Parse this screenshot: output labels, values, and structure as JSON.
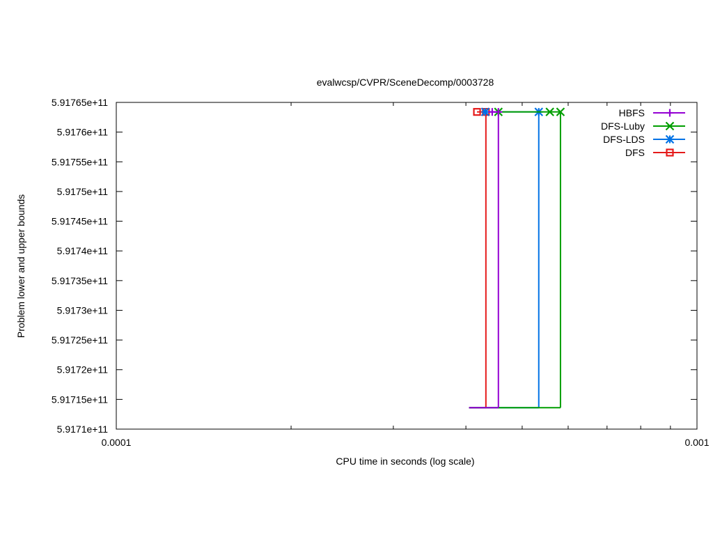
{
  "chart_data": {
    "type": "line",
    "title": "evalwcsp/CVPR/SceneDecomp/0003728",
    "xlabel": "CPU time in seconds (log scale)",
    "ylabel": "Problem lower and upper bounds",
    "x_scale": "log",
    "xlim": [
      0.0001,
      0.001
    ],
    "ylim": [
      591710000000,
      591765000000
    ],
    "x_tick_labels": [
      "0.0001",
      "0.001"
    ],
    "y_tick_labels": [
      "5.9171e+11",
      "5.91715e+11",
      "5.9172e+11",
      "5.91725e+11",
      "5.9173e+11",
      "5.91735e+11",
      "5.9174e+11",
      "5.91745e+11",
      "5.9175e+11",
      "5.91755e+11",
      "5.9176e+11",
      "5.91765e+11"
    ],
    "grid": false,
    "legend_position": "top-right",
    "series": [
      {
        "name": "HBFS",
        "color": "#9400d3",
        "marker": "plus",
        "upper": [
          [
            0.000444,
            591763400000
          ],
          [
            0.000455,
            591763400000
          ]
        ],
        "lower": [
          [
            0.000405,
            591713600000
          ],
          [
            0.000455,
            591713600000
          ]
        ]
      },
      {
        "name": "DFS-Luby",
        "color": "#009e00",
        "marker": "cross",
        "upper": [
          [
            0.000455,
            591763400000
          ],
          [
            0.000558,
            591763400000
          ],
          [
            0.000582,
            591763400000
          ]
        ],
        "lower": [
          [
            0.000405,
            591713600000
          ],
          [
            0.000582,
            591713600000
          ]
        ]
      },
      {
        "name": "DFS-LDS",
        "color": "#0072e5",
        "marker": "star",
        "upper": [
          [
            0.000432,
            591763400000
          ],
          [
            0.000534,
            591763400000
          ]
        ],
        "lower": [
          [
            0.000405,
            591713600000
          ],
          [
            0.000534,
            591713600000
          ]
        ]
      },
      {
        "name": "DFS",
        "color": "#e51a1a",
        "marker": "square",
        "upper": [
          [
            0.000418,
            591763400000
          ],
          [
            0.000433,
            591763400000
          ]
        ],
        "lower": [
          [
            0.000405,
            591713600000
          ],
          [
            0.000433,
            591713600000
          ]
        ]
      }
    ]
  }
}
